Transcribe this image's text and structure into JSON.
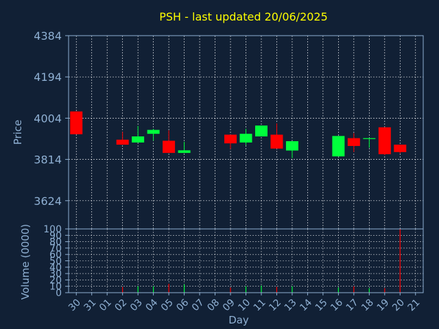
{
  "chart_data": [
    {
      "type": "candlestick",
      "title": "PSH - last updated 20/06/2025",
      "ylabel": "Price",
      "ylim": [
        3494,
        4384
      ],
      "y_ticks": [
        "4384",
        "4194",
        "4004",
        "3814",
        "3624"
      ],
      "x_ticks": [
        "30",
        "31",
        "01",
        "02",
        "03",
        "04",
        "05",
        "06",
        "07",
        "08",
        "09",
        "10",
        "11",
        "12",
        "13",
        "14",
        "15",
        "16",
        "17",
        "18",
        "19",
        "20",
        "21"
      ],
      "grid": true,
      "candles": [
        {
          "day": "30",
          "open": 4035,
          "high": 4035,
          "low": 3930,
          "close": 3930
        },
        {
          "day": "02",
          "open": 3905,
          "high": 3941,
          "low": 3882,
          "close": 3882
        },
        {
          "day": "03",
          "open": 3892,
          "high": 3968,
          "low": 3892,
          "close": 3920
        },
        {
          "day": "04",
          "open": 3932,
          "high": 3955,
          "low": 3900,
          "close": 3950
        },
        {
          "day": "05",
          "open": 3900,
          "high": 3948,
          "low": 3844,
          "close": 3844
        },
        {
          "day": "06",
          "open": 3844,
          "high": 3895,
          "low": 3844,
          "close": 3856
        },
        {
          "day": "09",
          "open": 3928,
          "high": 3928,
          "low": 3862,
          "close": 3888
        },
        {
          "day": "10",
          "open": 3892,
          "high": 3955,
          "low": 3880,
          "close": 3932
        },
        {
          "day": "11",
          "open": 3920,
          "high": 3970,
          "low": 3920,
          "close": 3970
        },
        {
          "day": "12",
          "open": 3928,
          "high": 3980,
          "low": 3864,
          "close": 3864
        },
        {
          "day": "13",
          "open": 3855,
          "high": 3898,
          "low": 3820,
          "close": 3898
        },
        {
          "day": "16",
          "open": 3828,
          "high": 3922,
          "low": 3828,
          "close": 3922
        },
        {
          "day": "17",
          "open": 3912,
          "high": 3935,
          "low": 3848,
          "close": 3876
        },
        {
          "day": "18",
          "open": 3908,
          "high": 3912,
          "low": 3868,
          "close": 3912
        },
        {
          "day": "19",
          "open": 3962,
          "high": 3962,
          "low": 3834,
          "close": 3838
        },
        {
          "day": "20",
          "open": 3882,
          "high": 3882,
          "low": 3842,
          "close": 3848
        }
      ]
    },
    {
      "type": "bar",
      "ylabel": "Volume (0000)",
      "xlabel": "Day",
      "ylim": [
        0,
        100
      ],
      "y_ticks": [
        "100",
        "90",
        "80",
        "70",
        "60",
        "50",
        "40",
        "30",
        "20",
        "10",
        "0"
      ],
      "grid": true,
      "bars": [
        {
          "day": "30",
          "value": 0,
          "direction": "down"
        },
        {
          "day": "02",
          "value": 9,
          "direction": "down"
        },
        {
          "day": "03",
          "value": 10,
          "direction": "up"
        },
        {
          "day": "04",
          "value": 10,
          "direction": "up"
        },
        {
          "day": "05",
          "value": 14,
          "direction": "down"
        },
        {
          "day": "06",
          "value": 13,
          "direction": "up"
        },
        {
          "day": "09",
          "value": 8,
          "direction": "down"
        },
        {
          "day": "10",
          "value": 10,
          "direction": "up"
        },
        {
          "day": "11",
          "value": 11,
          "direction": "up"
        },
        {
          "day": "12",
          "value": 9,
          "direction": "down"
        },
        {
          "day": "13",
          "value": 10,
          "direction": "up"
        },
        {
          "day": "16",
          "value": 8,
          "direction": "up"
        },
        {
          "day": "17",
          "value": 10,
          "direction": "down"
        },
        {
          "day": "18",
          "value": 7,
          "direction": "up"
        },
        {
          "day": "19",
          "value": 7,
          "direction": "down"
        },
        {
          "day": "20",
          "value": 100,
          "direction": "down"
        }
      ]
    }
  ],
  "colors": {
    "background": "#112035",
    "up": "#00ff3c",
    "down": "#ff0000",
    "title": "#ffff00",
    "text": "#8fb0d3",
    "grid": "#ffffff",
    "axis": "#8fb0d3"
  }
}
